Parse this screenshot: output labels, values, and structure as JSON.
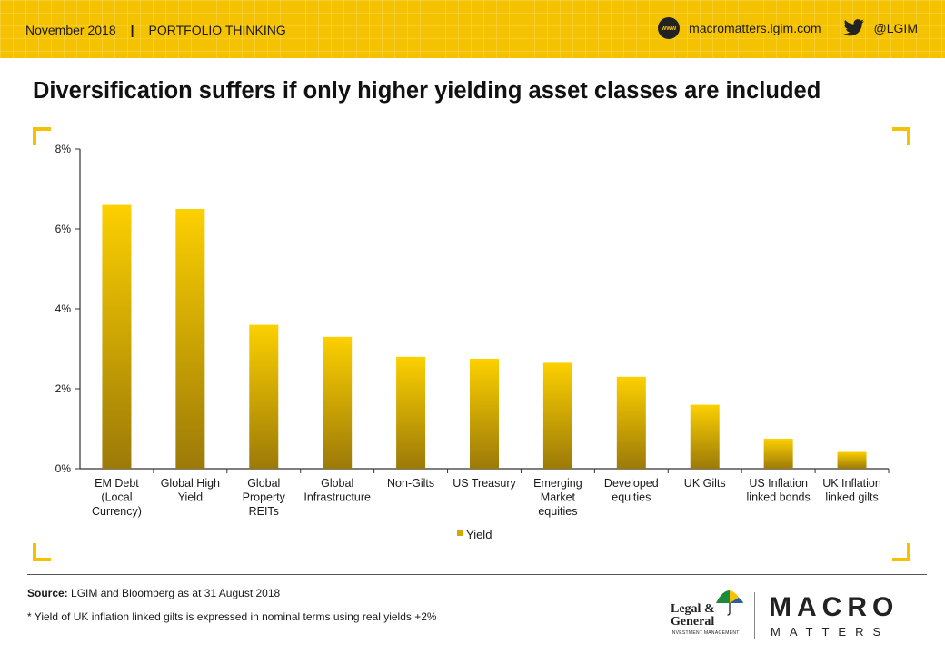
{
  "header": {
    "date": "November 2018",
    "separator": "|",
    "section": "PORTFOLIO THINKING",
    "www_icon_label": "www",
    "website": "macromatters.lgim.com",
    "twitter_handle": "@LGIM"
  },
  "title": "Diversification suffers if only higher yielding asset classes are included",
  "chart_data": {
    "type": "bar",
    "categories": [
      "EM Debt (Local Currency)",
      "Global High Yield",
      "Global Property REITs",
      "Global Infrastructure",
      "Non-Gilts",
      "US Treasury",
      "Emerging Market equities",
      "Developed equities",
      "UK Gilts",
      "US Inflation linked bonds",
      "UK Inflation linked gilts"
    ],
    "category_lines": [
      [
        "EM Debt",
        "(Local",
        "Currency)"
      ],
      [
        "Global High",
        "Yield"
      ],
      [
        "Global",
        "Property",
        "REITs"
      ],
      [
        "Global",
        "Infrastructure"
      ],
      [
        "Non-Gilts"
      ],
      [
        "US Treasury"
      ],
      [
        "Emerging",
        "Market",
        "equities"
      ],
      [
        "Developed",
        "equities"
      ],
      [
        "UK Gilts"
      ],
      [
        "US Inflation",
        "linked bonds"
      ],
      [
        "UK Inflation",
        "linked gilts"
      ]
    ],
    "series": [
      {
        "name": "Yield",
        "values": [
          6.6,
          6.5,
          3.6,
          3.3,
          2.8,
          2.75,
          2.65,
          2.3,
          1.6,
          0.75,
          0.42
        ]
      }
    ],
    "ylim": [
      0,
      8
    ],
    "yticks": [
      "0%",
      "2%",
      "4%",
      "6%",
      "8%"
    ],
    "ytick_values": [
      0,
      2,
      4,
      6,
      8
    ],
    "legend_position": "bottom-center",
    "colors": {
      "bar_top": "#fcd000",
      "bar_bottom": "#9c7a08",
      "legend_swatch": "#d4a800"
    }
  },
  "footer": {
    "source_label": "Source:",
    "source_text": "LGIM  and Bloomberg as at 31 August 2018",
    "note": "* Yield of UK inflation linked gilts is expressed in nominal terms using real yields +2%",
    "lg_logo_lines": [
      "Legal &",
      "General"
    ],
    "lg_logo_sub": "INVESTMENT MANAGEMENT",
    "brand_macro": "MACRO",
    "brand_matters": "MATTERS"
  },
  "colors": {
    "accent": "#f5c200",
    "text": "#1a1a1a"
  }
}
